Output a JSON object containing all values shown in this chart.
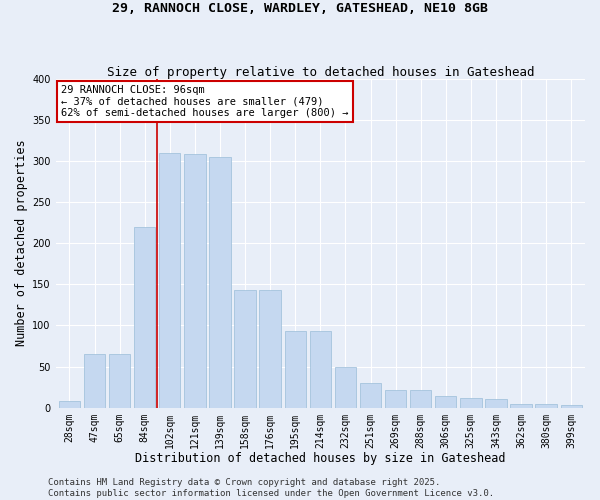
{
  "title_line1": "29, RANNOCH CLOSE, WARDLEY, GATESHEAD, NE10 8GB",
  "title_line2": "Size of property relative to detached houses in Gateshead",
  "xlabel": "Distribution of detached houses by size in Gateshead",
  "ylabel": "Number of detached properties",
  "categories": [
    "28sqm",
    "47sqm",
    "65sqm",
    "84sqm",
    "102sqm",
    "121sqm",
    "139sqm",
    "158sqm",
    "176sqm",
    "195sqm",
    "214sqm",
    "232sqm",
    "251sqm",
    "269sqm",
    "288sqm",
    "306sqm",
    "325sqm",
    "343sqm",
    "362sqm",
    "380sqm",
    "399sqm"
  ],
  "values": [
    8,
    65,
    65,
    220,
    310,
    308,
    305,
    143,
    143,
    93,
    93,
    49,
    30,
    22,
    21,
    14,
    12,
    11,
    5,
    4,
    3
  ],
  "bar_color": "#c5d8f0",
  "bar_edge_color": "#9bbdd8",
  "vline_color": "#cc0000",
  "vline_x_index": 3.5,
  "annotation_text": "29 RANNOCH CLOSE: 96sqm\n← 37% of detached houses are smaller (479)\n62% of semi-detached houses are larger (800) →",
  "annotation_box_facecolor": "#ffffff",
  "annotation_box_edgecolor": "#cc0000",
  "ylim": [
    0,
    400
  ],
  "yticks": [
    0,
    50,
    100,
    150,
    200,
    250,
    300,
    350,
    400
  ],
  "footer_line1": "Contains HM Land Registry data © Crown copyright and database right 2025.",
  "footer_line2": "Contains public sector information licensed under the Open Government Licence v3.0.",
  "bg_color": "#e8eef8",
  "plot_bg_color": "#e8eef8",
  "grid_color": "#ffffff",
  "title1_fontsize": 9.5,
  "title2_fontsize": 9,
  "axis_label_fontsize": 8.5,
  "tick_fontsize": 7,
  "annot_fontsize": 7.5,
  "footer_fontsize": 6.5
}
